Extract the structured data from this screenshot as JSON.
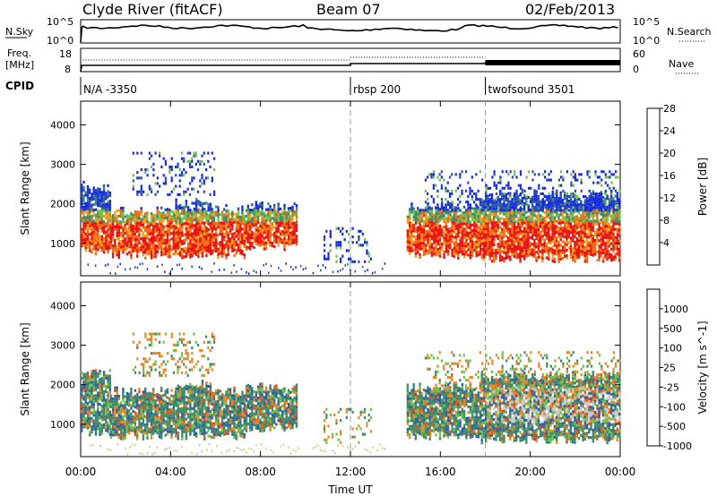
{
  "header": {
    "station": "Clyde River (fitACF)",
    "beam": "Beam 07",
    "date": "02/Feb/2013"
  },
  "noise_panel": {
    "left_label": "N.Sky",
    "right_label": "N.Search",
    "left_ticks": [
      "10^5",
      "10^0"
    ],
    "right_ticks": [
      "10^5",
      "10^0"
    ]
  },
  "freq_panel": {
    "left_label": "Freq.",
    "left_unit": "[MHz]",
    "right_label": "Nave",
    "left_ticks": [
      "18",
      "8"
    ],
    "right_ticks": [
      "60",
      "0"
    ]
  },
  "cpid": {
    "label": "CPID",
    "entries": [
      {
        "name": "N/A -3350",
        "start_hour": 0
      },
      {
        "name": "rbsp 200",
        "start_hour": 12
      },
      {
        "name": "twofsound 3501",
        "start_hour": 18
      }
    ]
  },
  "chart_data": [
    {
      "type": "heatmap",
      "parameter": "Power",
      "ylabel": "Slant Range [km]",
      "ylim": [
        180,
        4600
      ],
      "yticks": [
        1000,
        2000,
        3000,
        4000
      ],
      "colorbar_label": "Power [dB]",
      "colorbar_ticks": [
        "4",
        "8",
        "12",
        "16",
        "20",
        "24",
        "28"
      ],
      "colors": [
        "#1428e6",
        "#2a4fb0",
        "#3c8a6a",
        "#6cc24a",
        "#f0a020",
        "#f06a10",
        "#e81010"
      ],
      "echo_regions": [
        {
          "t_start": 0.0,
          "t_end": 1.3,
          "r_low": 800,
          "r_high": 2400
        },
        {
          "t_start": 1.3,
          "t_end": 4.2,
          "r_low": 700,
          "r_high": 1800
        },
        {
          "t_start": 4.2,
          "t_end": 5.8,
          "r_low": 700,
          "r_high": 2000
        },
        {
          "t_start": 5.8,
          "t_end": 7.4,
          "r_low": 700,
          "r_high": 1800
        },
        {
          "t_start": 7.4,
          "t_end": 9.6,
          "r_low": 900,
          "r_high": 1900
        },
        {
          "t_start": 14.5,
          "t_end": 17.8,
          "r_low": 700,
          "r_high": 1900
        },
        {
          "t_start": 17.8,
          "t_end": 24.0,
          "r_low": 600,
          "r_high": 2200
        }
      ],
      "scatter_regions": [
        {
          "t_start": 2.3,
          "t_end": 5.9,
          "r_low": 2200,
          "r_high": 3300
        },
        {
          "t_start": 10.8,
          "t_end": 12.9,
          "r_low": 500,
          "r_high": 1400
        },
        {
          "t_start": 15.3,
          "t_end": 24.0,
          "r_low": 1800,
          "r_high": 2800
        }
      ]
    },
    {
      "type": "heatmap",
      "parameter": "Velocity",
      "ylabel": "Slant Range [km]",
      "ylim": [
        180,
        4600
      ],
      "yticks": [
        1000,
        2000,
        3000,
        4000
      ],
      "colorbar_label": "Velocity [m s^-1]",
      "colorbar_ticks": [
        "1000",
        "500",
        "100",
        "25",
        "-25",
        "-100",
        "-500",
        "-1000"
      ],
      "colors": [
        "#1f2fb5",
        "#2f5fa0",
        "#3c8a6a",
        "#6cc24a",
        "#c8c8c8",
        "#f08020",
        "#f05010",
        "#e81010"
      ],
      "echo_regions": [
        {
          "t_start": 0.0,
          "t_end": 1.3,
          "r_low": 800,
          "r_high": 2300
        },
        {
          "t_start": 1.3,
          "t_end": 4.2,
          "r_low": 700,
          "r_high": 1800
        },
        {
          "t_start": 4.2,
          "t_end": 5.8,
          "r_low": 700,
          "r_high": 2000
        },
        {
          "t_start": 5.8,
          "t_end": 7.4,
          "r_low": 700,
          "r_high": 1800
        },
        {
          "t_start": 7.4,
          "t_end": 9.6,
          "r_low": 900,
          "r_high": 1900
        },
        {
          "t_start": 14.5,
          "t_end": 17.8,
          "r_low": 700,
          "r_high": 1900
        },
        {
          "t_start": 17.8,
          "t_end": 24.0,
          "r_low": 600,
          "r_high": 2200
        }
      ],
      "scatter_regions": [
        {
          "t_start": 2.3,
          "t_end": 5.9,
          "r_low": 2200,
          "r_high": 3300
        },
        {
          "t_start": 10.8,
          "t_end": 12.9,
          "r_low": 500,
          "r_high": 1400
        },
        {
          "t_start": 15.3,
          "t_end": 24.0,
          "r_low": 1800,
          "r_high": 2800
        }
      ]
    }
  ],
  "x_axis": {
    "label": "Time UT",
    "ticks": [
      "00:00",
      "04:00",
      "08:00",
      "12:00",
      "16:00",
      "20:00",
      "00:00"
    ]
  }
}
